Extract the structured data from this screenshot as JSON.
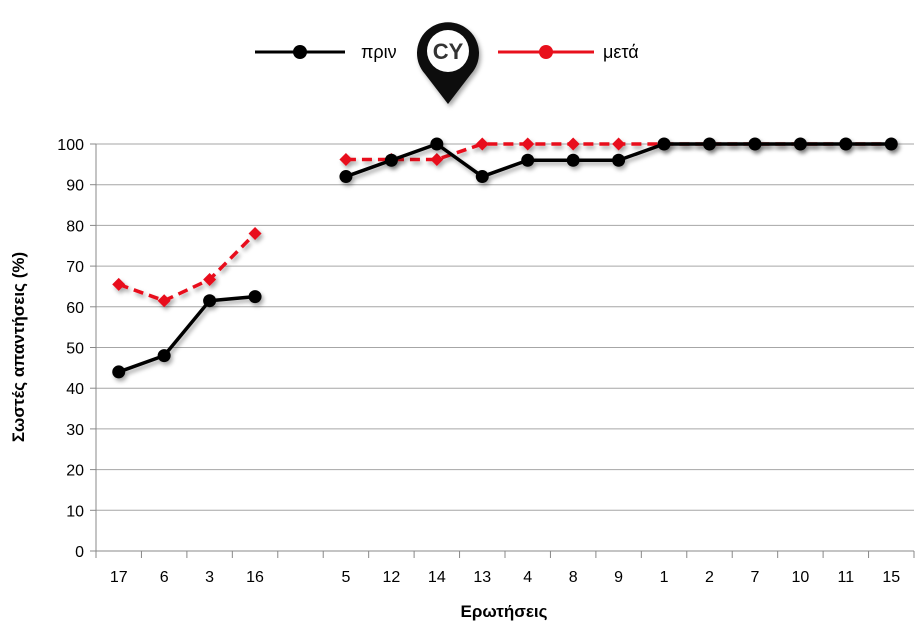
{
  "chart_data": {
    "type": "line",
    "categories": [
      "17",
      "6",
      "3",
      "16",
      "",
      "5",
      "12",
      "14",
      "13",
      "4",
      "8",
      "9",
      "1",
      "2",
      "7",
      "10",
      "11",
      "15"
    ],
    "series": [
      {
        "name": "πριν",
        "color": "#000000",
        "style": "solid",
        "marker": "circle",
        "values": [
          44,
          48,
          61.5,
          62.5,
          null,
          92,
          96,
          100,
          92,
          96,
          96,
          96,
          100,
          100,
          100,
          100,
          100,
          100
        ]
      },
      {
        "name": "μετά",
        "color": "#e8101c",
        "style": "dashed",
        "marker": "diamond",
        "values": [
          65.5,
          61.5,
          66.7,
          78,
          null,
          96.2,
          96.2,
          96.2,
          100,
          100,
          100,
          100,
          100,
          100,
          100,
          100,
          100,
          100
        ]
      }
    ],
    "xlabel": "Ερωτήσεις",
    "ylabel": "Σωστές απαντήσεις  (%)",
    "ylim": [
      0,
      100
    ],
    "yticks": [
      0,
      10,
      20,
      30,
      40,
      50,
      60,
      70,
      80,
      90,
      100
    ],
    "grid": true,
    "legend": "top-center",
    "badge": "CY"
  }
}
